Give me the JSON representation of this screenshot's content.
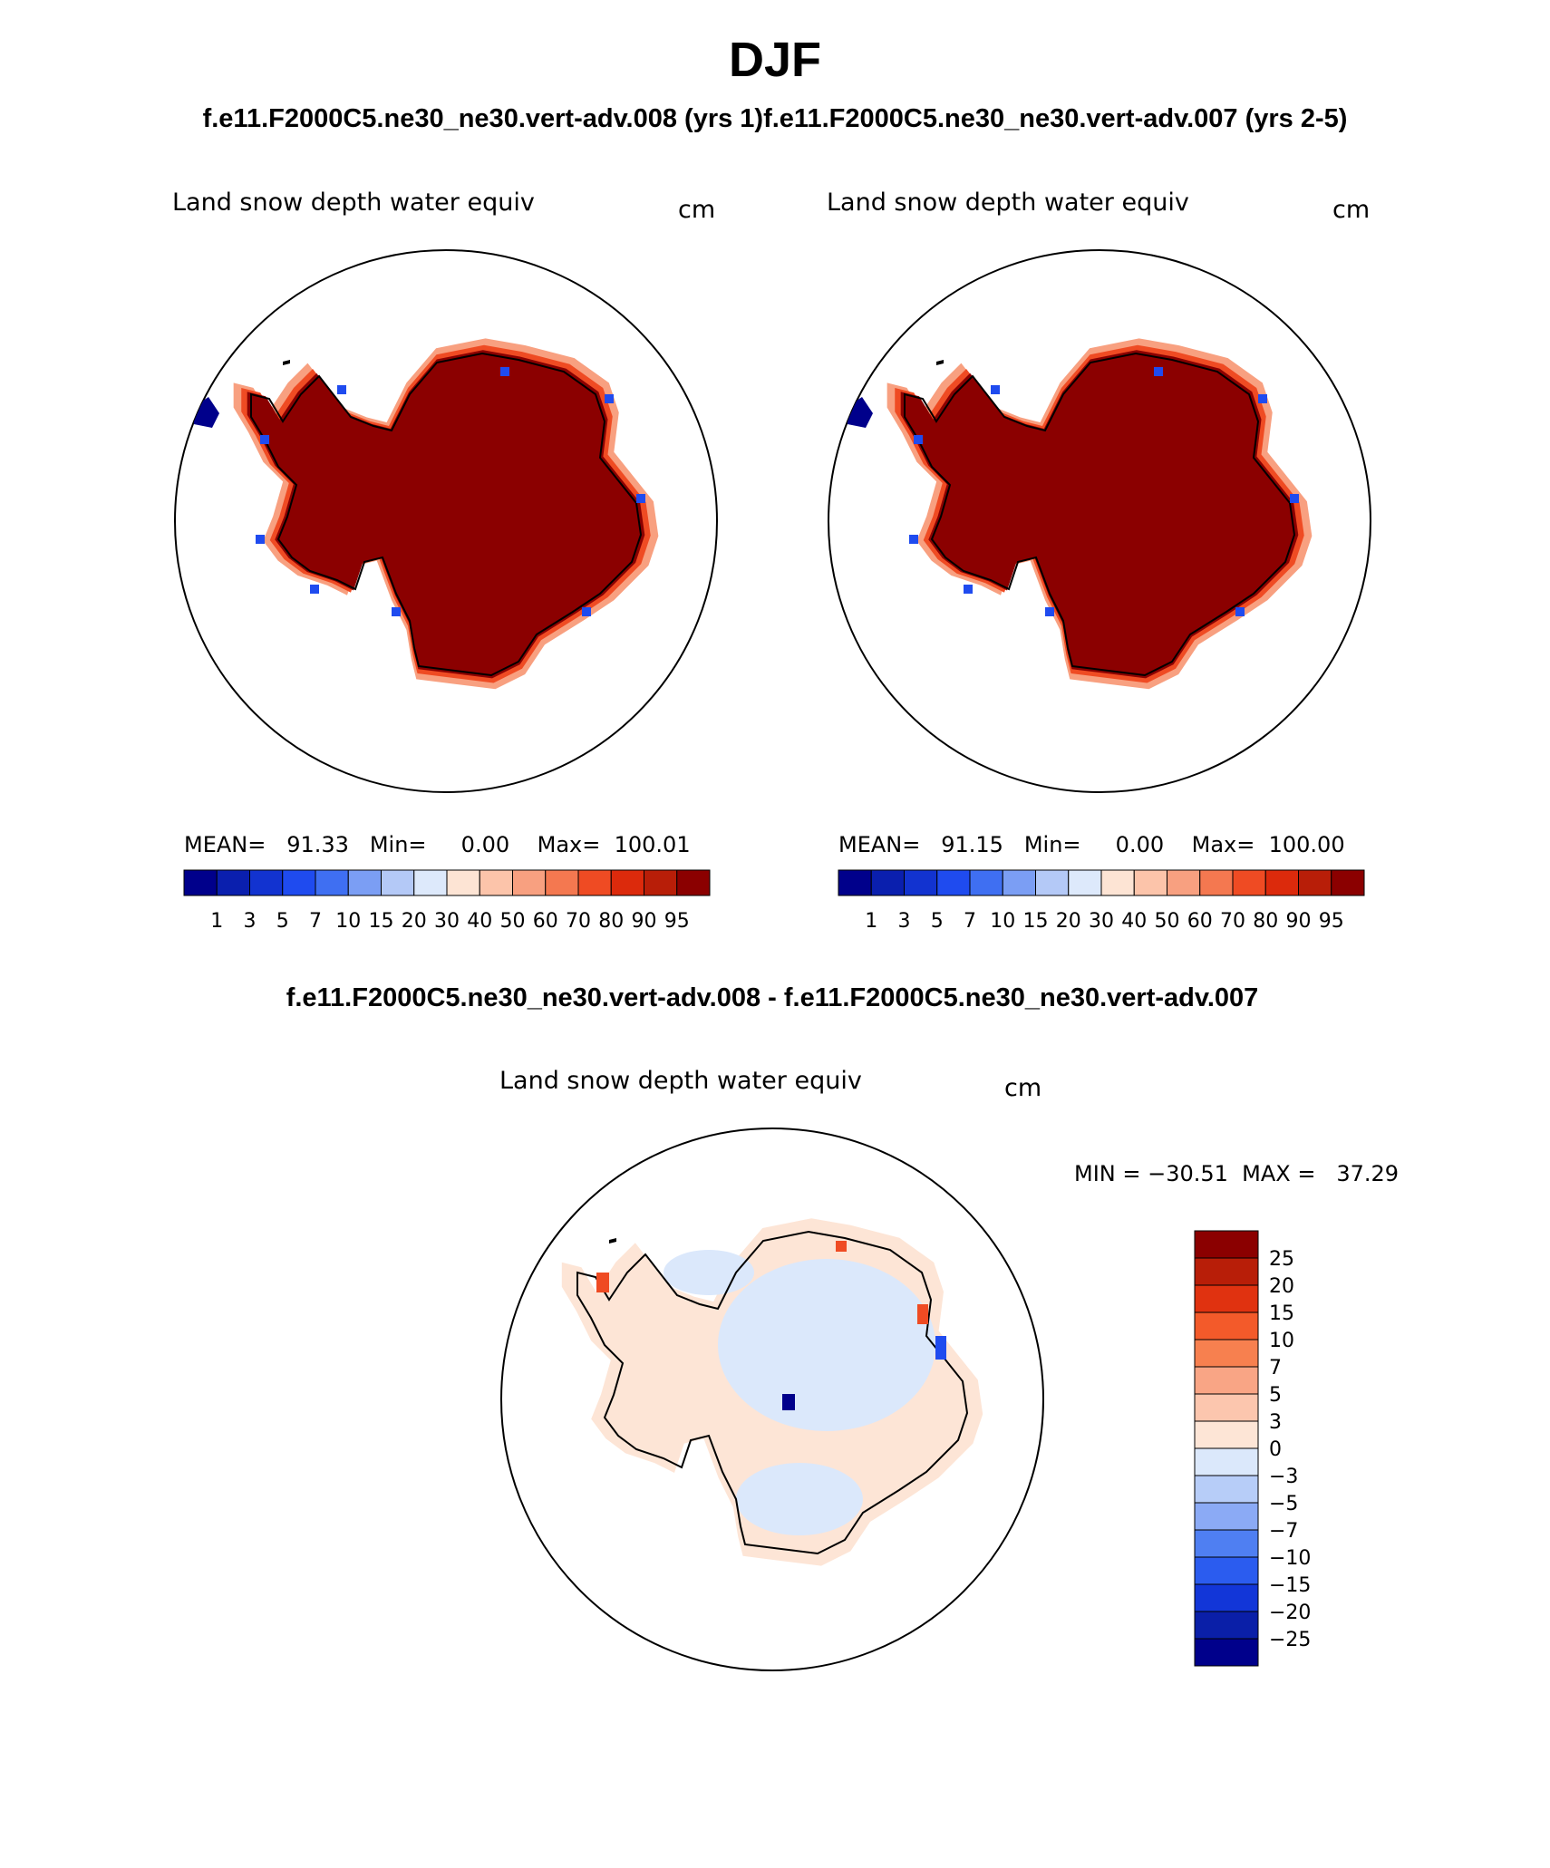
{
  "title": "DJF",
  "top_subtitle": "f.e11.F2000C5.ne30_ne30.vert-adv.008 (yrs 1)f.e11.F2000C5.ne30_ne30.vert-adv.007 (yrs 2-5)",
  "diff_subtitle": "f.e11.F2000C5.ne30_ne30.vert-adv.008 - f.e11.F2000C5.ne30_ne30.vert-adv.007",
  "panels": [
    {
      "variable": "Land snow depth water equiv",
      "units": "cm",
      "stats": "MEAN=   91.33   Min=     0.00    Max=  100.01"
    },
    {
      "variable": "Land snow depth water equiv",
      "units": "cm",
      "stats": "MEAN=   91.15   Min=     0.00    Max=  100.00"
    }
  ],
  "diff_panel": {
    "variable": "Land snow depth water equiv",
    "units": "cm",
    "stats": "MIN = −30.51  MAX =   37.29"
  },
  "colorbar_abs": {
    "labels": [
      "1",
      "3",
      "5",
      "7",
      "10",
      "15",
      "20",
      "30",
      "40",
      "50",
      "60",
      "70",
      "80",
      "90",
      "95"
    ],
    "colors": [
      "#00008b",
      "#0a1fae",
      "#1233d0",
      "#1f4bef",
      "#3f6ff2",
      "#7b9ef4",
      "#b4c9f7",
      "#dde9fb",
      "#fde4d4",
      "#fcc4aa",
      "#f8a080",
      "#f47850",
      "#ef4b23",
      "#dc2a0c",
      "#b81e08",
      "#8b0000"
    ]
  },
  "colorbar_diff": {
    "labels": [
      "25",
      "20",
      "15",
      "10",
      "7",
      "5",
      "3",
      "0",
      "−3",
      "−5",
      "−7",
      "−10",
      "−15",
      "−20",
      "−25"
    ],
    "colors": [
      "#8b0000",
      "#b81e08",
      "#e03210",
      "#f35a2a",
      "#f7804f",
      "#f9a585",
      "#fcc6ae",
      "#fde5d6",
      "#dbe8fb",
      "#b7cdf8",
      "#8baaf5",
      "#4f7ff2",
      "#2b5cef",
      "#1236d8",
      "#0a1fa8",
      "#00008b"
    ]
  },
  "map_colors": {
    "high": "#8b0000",
    "edge": "#ef4b23",
    "edge_light": "#f8a080",
    "blue": "#1f4bef",
    "navy": "#00008b",
    "diff_pos": "#fde5d6",
    "diff_neg": "#dbe8fb"
  }
}
